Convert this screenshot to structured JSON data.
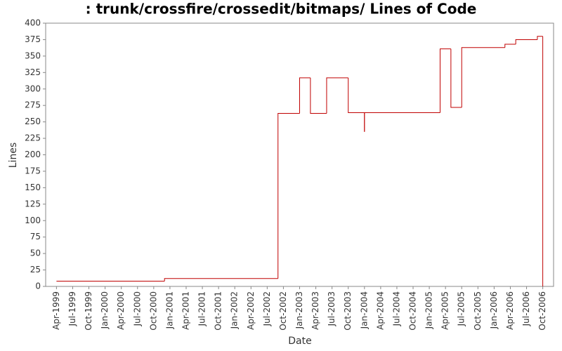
{
  "chart_data": {
    "type": "step",
    "title": ": trunk/crossfire/crossedit/bitmaps/ Lines of Code",
    "x_label": "Date",
    "y_label": "Lines",
    "color": "#c00000",
    "x": [
      "1999-04",
      "2000-12",
      "2002-09",
      "2003-01",
      "2003-03",
      "2003-06",
      "2003-10",
      "2004-01",
      "2004-01",
      "2005-03",
      "2005-05",
      "2005-07",
      "2006-03",
      "2006-05",
      "2006-09",
      "2006-10"
    ],
    "values": [
      8,
      12,
      263,
      317,
      263,
      317,
      264,
      235,
      264,
      361,
      272,
      363,
      368,
      375,
      380,
      0
    ],
    "xlim": [
      "1999-02",
      "2006-12"
    ],
    "ylim": [
      0,
      400
    ],
    "yticks": [
      0,
      25,
      50,
      75,
      100,
      125,
      150,
      175,
      200,
      225,
      250,
      275,
      300,
      325,
      350,
      375,
      400
    ],
    "xticks": [
      {
        "value": "1999-04",
        "label": "Apr-1999"
      },
      {
        "value": "1999-07",
        "label": "Jul-1999"
      },
      {
        "value": "1999-10",
        "label": "Oct-1999"
      },
      {
        "value": "2000-01",
        "label": "Jan-2000"
      },
      {
        "value": "2000-04",
        "label": "Apr-2000"
      },
      {
        "value": "2000-07",
        "label": "Jul-2000"
      },
      {
        "value": "2000-10",
        "label": "Oct-2000"
      },
      {
        "value": "2001-01",
        "label": "Jan-2001"
      },
      {
        "value": "2001-04",
        "label": "Apr-2001"
      },
      {
        "value": "2001-07",
        "label": "Jul-2001"
      },
      {
        "value": "2001-10",
        "label": "Oct-2001"
      },
      {
        "value": "2002-01",
        "label": "Jan-2002"
      },
      {
        "value": "2002-04",
        "label": "Apr-2002"
      },
      {
        "value": "2002-07",
        "label": "Jul-2002"
      },
      {
        "value": "2002-10",
        "label": "Oct-2002"
      },
      {
        "value": "2003-01",
        "label": "Jan-2003"
      },
      {
        "value": "2003-04",
        "label": "Apr-2003"
      },
      {
        "value": "2003-07",
        "label": "Jul-2003"
      },
      {
        "value": "2003-10",
        "label": "Oct-2003"
      },
      {
        "value": "2004-01",
        "label": "Jan-2004"
      },
      {
        "value": "2004-04",
        "label": "Apr-2004"
      },
      {
        "value": "2004-07",
        "label": "Jul-2004"
      },
      {
        "value": "2004-10",
        "label": "Oct-2004"
      },
      {
        "value": "2005-01",
        "label": "Jan-2005"
      },
      {
        "value": "2005-04",
        "label": "Apr-2005"
      },
      {
        "value": "2005-07",
        "label": "Jul-2005"
      },
      {
        "value": "2005-10",
        "label": "Oct-2005"
      },
      {
        "value": "2006-01",
        "label": "Jan-2006"
      },
      {
        "value": "2006-04",
        "label": "Apr-2006"
      },
      {
        "value": "2006-07",
        "label": "Jul-2006"
      },
      {
        "value": "2006-10",
        "label": "Oct-2006"
      }
    ]
  }
}
